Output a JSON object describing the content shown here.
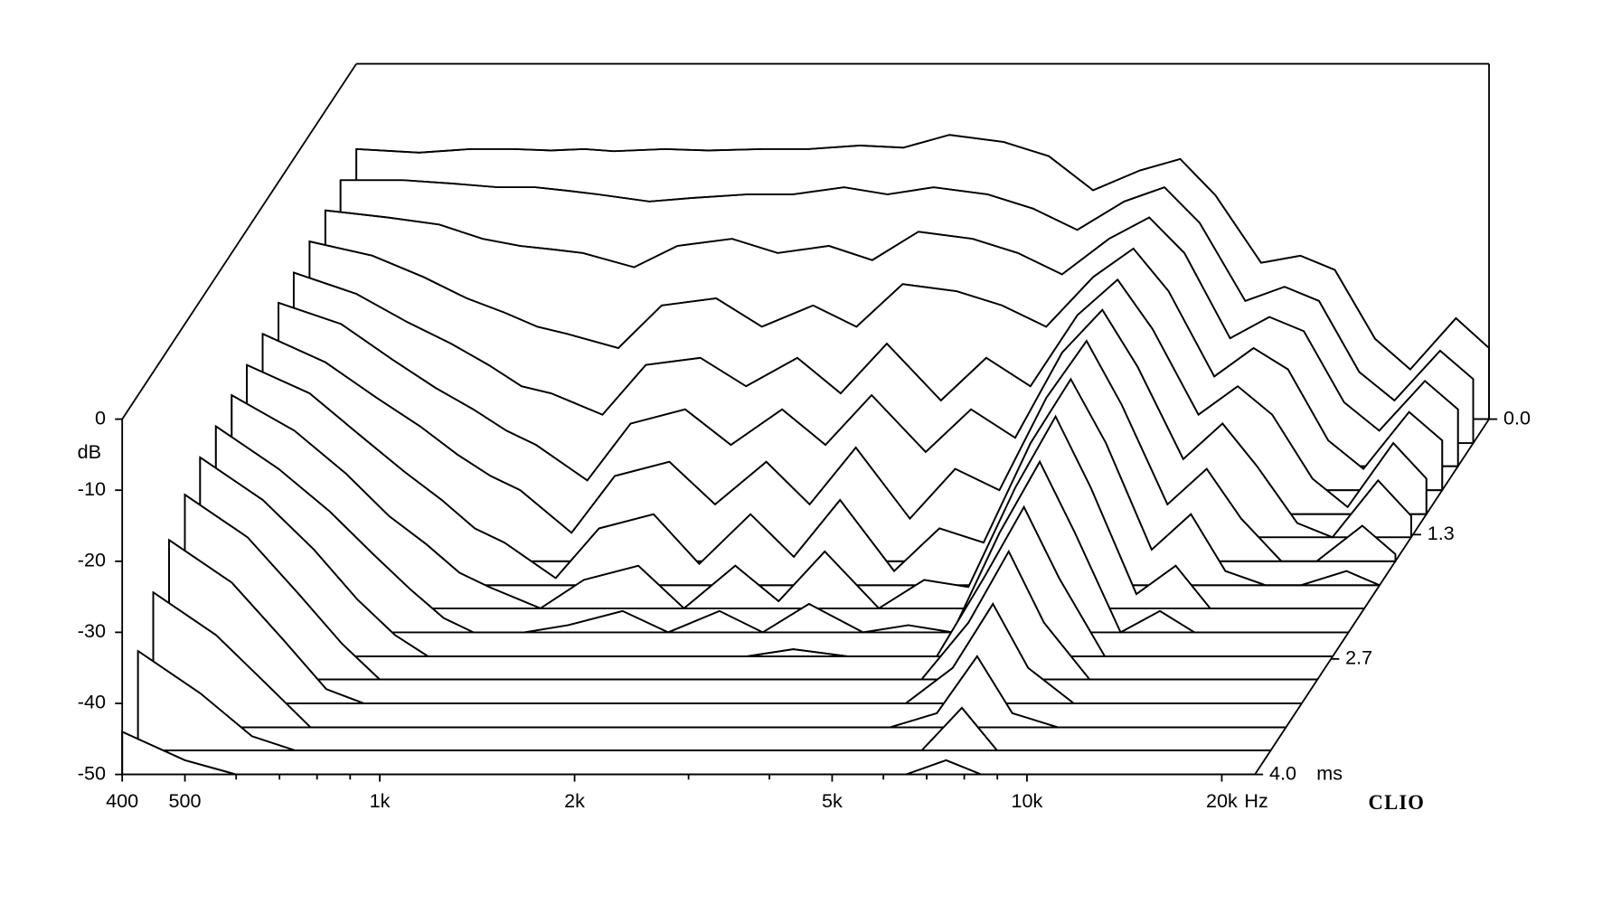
{
  "chart_data": {
    "type": "waterfall",
    "y_label": "dB",
    "x_label": "Hz",
    "z_label": "ms",
    "brand": "CLIO",
    "color": "#000000",
    "xlog": true,
    "xlim": [
      400,
      22500
    ],
    "xticks": [
      400,
      500,
      {
        "value": 1000,
        "label": "1k"
      },
      {
        "value": 2000,
        "label": "2k"
      },
      {
        "value": 5000,
        "label": "5k"
      },
      {
        "value": 10000,
        "label": "10k"
      },
      {
        "value": 20000,
        "label": "20k"
      }
    ],
    "xticks_minor": [
      600,
      700,
      800,
      900,
      3000,
      4000,
      6000,
      7000,
      8000,
      9000
    ],
    "ylim": [
      -50,
      0
    ],
    "yticks": [
      0,
      -10,
      -20,
      -30,
      -40,
      -50
    ],
    "zlim": [
      0,
      4.0
    ],
    "zticks": [
      {
        "value": 0,
        "label": "0.0"
      },
      1.3,
      2.7,
      {
        "value": 4.0,
        "label": "4.0"
      }
    ],
    "x": [
      400,
      500,
      600,
      700,
      800,
      900,
      1000,
      1200,
      1400,
      1700,
      2000,
      2400,
      2800,
      3300,
      4000,
      4700,
      5500,
      6500,
      7500,
      8500,
      10000,
      11500,
      13000,
      15000,
      17000,
      20000,
      22500
    ],
    "z": [
      0,
      0.27,
      0.53,
      0.8,
      1.07,
      1.33,
      1.6,
      1.87,
      2.13,
      2.4,
      2.67,
      2.93,
      3.2,
      3.47,
      3.73,
      4.0
    ],
    "series": [
      {
        "values": [
          -12,
          -12.5,
          -12,
          -12,
          -12.2,
          -12,
          -12.3,
          -12,
          -12.2,
          -12,
          -12,
          -11.5,
          -11.8,
          -10,
          -11,
          -13,
          -17.8,
          -15,
          -13.4,
          -18.5,
          -28,
          -27,
          -29,
          -38.7,
          -43,
          -35.8,
          -40
        ]
      },
      {
        "values": [
          -13,
          -13,
          -13.5,
          -14,
          -14,
          -14.5,
          -15,
          -16,
          -15.5,
          -15,
          -15,
          -14,
          -15,
          -14,
          -15,
          -17,
          -20,
          -16,
          -14,
          -19,
          -30,
          -28,
          -30,
          -40,
          -44,
          -37,
          -41
        ]
      },
      {
        "values": [
          -14,
          -15,
          -16,
          -18,
          -19,
          -19.5,
          -20,
          -22,
          -19,
          -18,
          -20,
          -19,
          -21,
          -17,
          -18,
          -20,
          -23,
          -18,
          -15,
          -20,
          -32,
          -29,
          -31,
          -41,
          -45,
          -38,
          -42
        ]
      },
      {
        "values": [
          -15,
          -17,
          -20,
          -23,
          -25,
          -27,
          -28,
          -30,
          -24,
          -23,
          -27,
          -24,
          -27,
          -21,
          -22,
          -24,
          -27,
          -20,
          -16,
          -22,
          -34,
          -30,
          -33,
          -43,
          -47,
          -39,
          -43
        ]
      },
      {
        "values": [
          -16,
          -19,
          -23,
          -26,
          -29,
          -32,
          -33,
          -36,
          -29,
          -28,
          -32,
          -28,
          -33,
          -26,
          -34,
          -28,
          -32,
          -22,
          -17,
          -24,
          -36,
          -32,
          -36,
          -45,
          -49,
          -40,
          -45
        ]
      },
      {
        "values": [
          -17,
          -20,
          -25,
          -29,
          -32,
          -35,
          -37,
          -42,
          -34,
          -32,
          -37,
          -32,
          -37,
          -30,
          -38,
          -32,
          -36,
          -24,
          -18,
          -26,
          -39,
          -34,
          -40,
          -48,
          -50,
          -42,
          -47
        ]
      },
      {
        "values": [
          -18,
          -22,
          -27,
          -31,
          -35,
          -38,
          -40,
          -46,
          -38,
          -36,
          -42,
          -36,
          -42,
          -34,
          -44,
          -37,
          -40,
          -27,
          -19,
          -28,
          -42,
          -37,
          -44,
          -50,
          -50,
          -45,
          -49
        ]
      },
      {
        "values": [
          -19,
          -23,
          -29,
          -34,
          -38,
          -42,
          -44,
          -49,
          -42,
          -40,
          -47,
          -40,
          -46,
          -38,
          -48,
          -42,
          -44,
          -30,
          -21,
          -30,
          -45,
          -40,
          -48,
          -50,
          -50,
          -48,
          -50
        ]
      },
      {
        "values": [
          -20,
          -25,
          -31,
          -37,
          -41,
          -45,
          -47,
          -50,
          -46,
          -44,
          -50,
          -44,
          -49,
          -42,
          -50,
          -46,
          -47,
          -33,
          -23,
          -33,
          -48,
          -44,
          -50,
          -50,
          -50,
          -50,
          -50
        ]
      },
      {
        "values": [
          -21,
          -27,
          -33,
          -39,
          -44,
          -48,
          -50,
          -50,
          -49,
          -47,
          -50,
          -47,
          -50,
          -46,
          -50,
          -49,
          -50,
          -36,
          -26,
          -36,
          -50,
          -47,
          -50,
          -50,
          -50,
          -50,
          -50
        ]
      },
      {
        "values": [
          -22,
          -28,
          -35,
          -42,
          -47,
          -50,
          -50,
          -50,
          -50,
          -50,
          -50,
          -50,
          -50,
          -49,
          -50,
          -50,
          -50,
          -39,
          -29,
          -39,
          -50,
          -50,
          -50,
          -50,
          -50,
          -50,
          -50
        ]
      },
      {
        "values": [
          -24,
          -30,
          -38,
          -45,
          -50,
          -50,
          -50,
          -50,
          -50,
          -50,
          -50,
          -50,
          -50,
          -50,
          -50,
          -50,
          -50,
          -42,
          -32,
          -42,
          -50,
          -50,
          -50,
          -50,
          -50,
          -50,
          -50
        ]
      },
      {
        "values": [
          -27,
          -33,
          -41,
          -48,
          -50,
          -50,
          -50,
          -50,
          -50,
          -50,
          -50,
          -50,
          -50,
          -50,
          -50,
          -50,
          -50,
          -45,
          -36,
          -45,
          -50,
          -50,
          -50,
          -50,
          -50,
          -50,
          -50
        ]
      },
      {
        "values": [
          -31,
          -37,
          -44,
          -50,
          -50,
          -50,
          -50,
          -50,
          -50,
          -50,
          -50,
          -50,
          -50,
          -50,
          -50,
          -50,
          -50,
          -48,
          -40,
          -48,
          -50,
          -50,
          -50,
          -50,
          -50,
          -50,
          -50
        ]
      },
      {
        "values": [
          -36,
          -42,
          -48,
          -50,
          -50,
          -50,
          -50,
          -50,
          -50,
          -50,
          -50,
          -50,
          -50,
          -50,
          -50,
          -50,
          -50,
          -50,
          -44,
          -50,
          -50,
          -50,
          -50,
          -50,
          -50,
          -50,
          -50
        ]
      },
      {
        "values": [
          -44,
          -48,
          -50,
          -50,
          -50,
          -50,
          -50,
          -50,
          -50,
          -50,
          -50,
          -50,
          -50,
          -50,
          -50,
          -50,
          -50,
          -50,
          -48,
          -50,
          -50,
          -50,
          -50,
          -50,
          -50,
          -50,
          -50
        ]
      }
    ]
  }
}
